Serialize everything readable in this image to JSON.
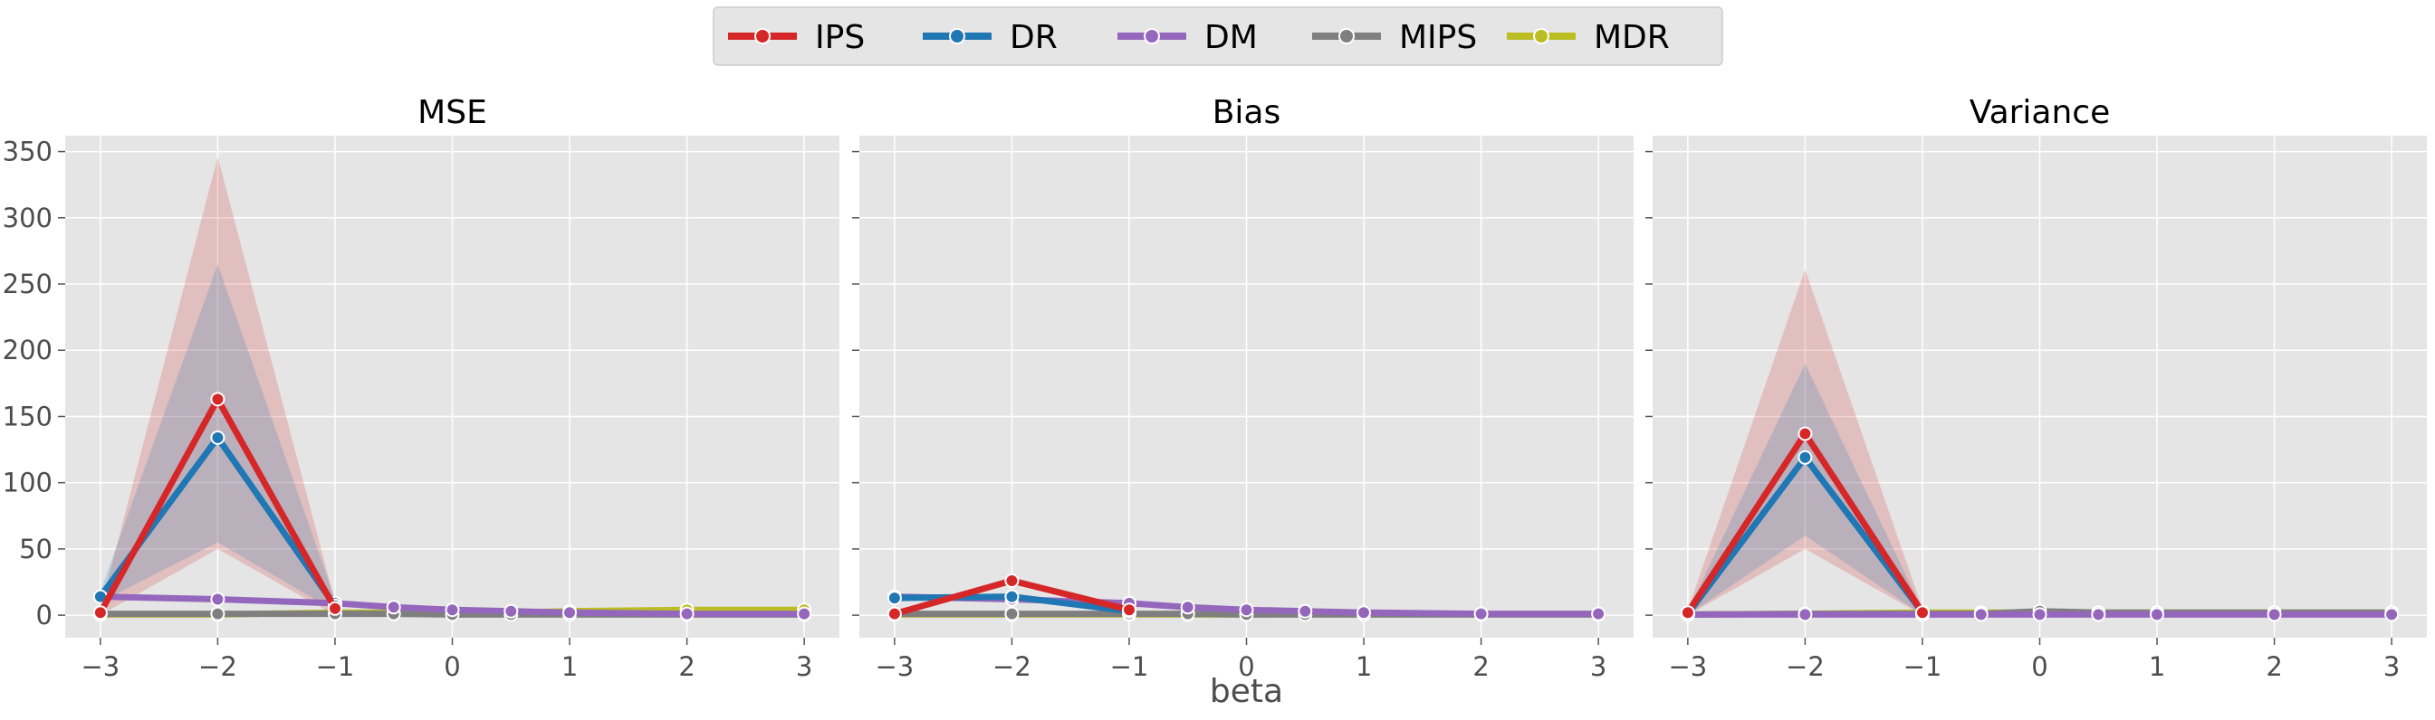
{
  "legend": {
    "placement": "top-center",
    "items": [
      {
        "name": "IPS",
        "color": "#d62728"
      },
      {
        "name": "DR",
        "color": "#1f77b4"
      },
      {
        "name": "DM",
        "color": "#9467bd"
      },
      {
        "name": "MIPS",
        "color": "#7f7f7f"
      },
      {
        "name": "MDR",
        "color": "#bcbd22"
      }
    ]
  },
  "xlabel": "beta",
  "chart_data": [
    {
      "type": "line",
      "title": "MSE",
      "x": [
        -3,
        -2,
        -1,
        -0.5,
        0,
        0.5,
        1,
        2,
        3
      ],
      "xticks": [
        -3,
        -2,
        -1,
        0,
        1,
        2,
        3
      ],
      "yticks": [
        0,
        50,
        100,
        150,
        200,
        250,
        300,
        350
      ],
      "xlim": [
        -3.3,
        3.3
      ],
      "ylim": [
        -17,
        362
      ],
      "grid": true,
      "series": [
        {
          "name": "IPS",
          "color": "#d62728",
          "values": [
            2,
            163,
            5,
            null,
            null,
            null,
            null,
            null,
            null
          ],
          "upper": [
            5,
            346,
            10,
            null,
            null,
            null,
            null,
            null,
            null
          ],
          "lower": [
            0,
            50,
            0,
            null,
            null,
            null,
            null,
            null,
            null
          ]
        },
        {
          "name": "DR",
          "color": "#1f77b4",
          "values": [
            14,
            134,
            7,
            null,
            null,
            null,
            null,
            null,
            null
          ],
          "upper": [
            18,
            265,
            12,
            null,
            null,
            null,
            null,
            null,
            null
          ],
          "lower": [
            10,
            55,
            3,
            null,
            null,
            null,
            null,
            null,
            null
          ]
        },
        {
          "name": "DM",
          "color": "#9467bd",
          "values": [
            14,
            12,
            9,
            6,
            4,
            3,
            2,
            1,
            1
          ],
          "upper": null,
          "lower": null
        },
        {
          "name": "MIPS",
          "color": "#7f7f7f",
          "values": [
            1,
            1,
            1,
            1,
            0.5,
            0.5,
            0.5,
            0.5,
            0.5
          ],
          "upper": null,
          "lower": null
        },
        {
          "name": "MDR",
          "color": "#bcbd22",
          "values": [
            0.5,
            0.5,
            2,
            2,
            2,
            2,
            3,
            4,
            4
          ],
          "upper": null,
          "lower": null
        }
      ]
    },
    {
      "type": "line",
      "title": "Bias",
      "x": [
        -3,
        -2,
        -1,
        -0.5,
        0,
        0.5,
        1,
        2,
        3
      ],
      "xticks": [
        -3,
        -2,
        -1,
        0,
        1,
        2,
        3
      ],
      "yticks": [
        0,
        50,
        100,
        150,
        200,
        250,
        300,
        350
      ],
      "xlim": [
        -3.3,
        3.3
      ],
      "ylim": [
        -17,
        362
      ],
      "grid": true,
      "series": [
        {
          "name": "IPS",
          "color": "#d62728",
          "values": [
            1,
            26,
            4,
            null,
            null,
            null,
            null,
            null,
            null
          ],
          "upper": null,
          "lower": null
        },
        {
          "name": "DR",
          "color": "#1f77b4",
          "values": [
            13,
            14,
            3,
            null,
            null,
            null,
            null,
            null,
            null
          ],
          "upper": null,
          "lower": null
        },
        {
          "name": "DM",
          "color": "#9467bd",
          "values": [
            14,
            12,
            9,
            6,
            4,
            3,
            2,
            1,
            1
          ],
          "upper": null,
          "lower": null
        },
        {
          "name": "MIPS",
          "color": "#7f7f7f",
          "values": [
            1,
            1,
            1,
            1,
            0.5,
            0.5,
            0.5,
            0.5,
            0.5
          ],
          "upper": null,
          "lower": null
        },
        {
          "name": "MDR",
          "color": "#bcbd22",
          "values": [
            0.5,
            0.5,
            0.5,
            0.5,
            0.5,
            1,
            1,
            1,
            1
          ],
          "upper": null,
          "lower": null
        }
      ]
    },
    {
      "type": "line",
      "title": "Variance",
      "x": [
        -3,
        -2,
        -1,
        -0.5,
        0,
        0.5,
        1,
        2,
        3
      ],
      "xticks": [
        -3,
        -2,
        -1,
        0,
        1,
        2,
        3
      ],
      "yticks": [
        0,
        50,
        100,
        150,
        200,
        250,
        300,
        350
      ],
      "xlim": [
        -3.3,
        3.3
      ],
      "ylim": [
        -17,
        362
      ],
      "grid": true,
      "series": [
        {
          "name": "IPS",
          "color": "#d62728",
          "values": [
            2,
            137,
            2,
            null,
            null,
            null,
            null,
            null,
            null
          ],
          "upper": [
            4,
            261,
            5,
            null,
            null,
            null,
            null,
            null,
            null
          ],
          "lower": [
            0,
            50,
            0,
            null,
            null,
            null,
            null,
            null,
            null
          ]
        },
        {
          "name": "DR",
          "color": "#1f77b4",
          "values": [
            1,
            119,
            2,
            null,
            null,
            null,
            null,
            null,
            null
          ],
          "upper": [
            3,
            190,
            4,
            null,
            null,
            null,
            null,
            null,
            null
          ],
          "lower": [
            0,
            60,
            0,
            null,
            null,
            null,
            null,
            null,
            null
          ]
        },
        {
          "name": "DM",
          "color": "#9467bd",
          "values": [
            0.5,
            0.5,
            0.5,
            0.5,
            0.5,
            0.5,
            0.5,
            0.5,
            0.5
          ],
          "upper": null,
          "lower": null
        },
        {
          "name": "MIPS",
          "color": "#7f7f7f",
          "values": [
            0.5,
            1,
            1,
            1,
            3,
            2,
            2,
            2,
            2
          ],
          "upper": null,
          "lower": null
        },
        {
          "name": "MDR",
          "color": "#bcbd22",
          "values": [
            0.5,
            1,
            2,
            2,
            2,
            2,
            2,
            2,
            2
          ],
          "upper": null,
          "lower": null
        }
      ]
    }
  ]
}
